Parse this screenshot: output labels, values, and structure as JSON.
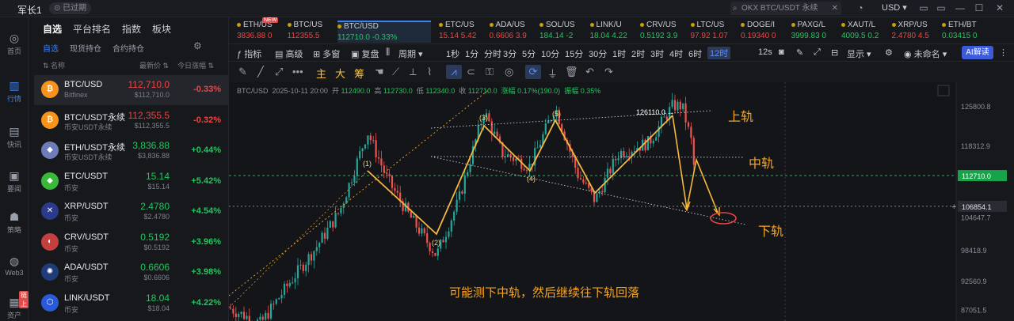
{
  "window": {
    "user": "军长1",
    "status_badge": "已过期",
    "search_placeholder": "OKX BTC/USDT 永续",
    "currency": "USD"
  },
  "sidebar": [
    {
      "label": "首页",
      "icon": "home-icon",
      "glyph": "◎"
    },
    {
      "label": "行情",
      "icon": "market-icon",
      "glyph": "▥",
      "active": true
    },
    {
      "label": "快讯",
      "icon": "news-icon",
      "glyph": "▤"
    },
    {
      "label": "要闻",
      "icon": "headline-icon",
      "glyph": "▣"
    },
    {
      "label": "策略",
      "icon": "robot-icon",
      "glyph": "☗"
    },
    {
      "label": "Web3",
      "icon": "web3-icon",
      "glyph": "◍"
    },
    {
      "label": "资产",
      "icon": "wallet-icon",
      "glyph": "▦",
      "badge": "链上"
    }
  ],
  "panel": {
    "tabs": [
      "自选",
      "平台排名",
      "指数",
      "板块"
    ],
    "new_badge": "NEW",
    "subtabs": [
      "自选",
      "现货持仓",
      "合约持仓"
    ],
    "columns": {
      "name": "名称",
      "price": "最新价",
      "change": "今日涨幅"
    },
    "rows": [
      {
        "name": "BTC/USD",
        "sub": "Bitfinex",
        "price": "112,710.0",
        "usd": "$112,710.0",
        "change": "-0.33%",
        "dir": "dn",
        "color": "#f7931a",
        "glyph": "₿",
        "selected": true
      },
      {
        "name": "BTC/USDT永续",
        "sub": "币安USDT永续",
        "price": "112,355.5",
        "usd": "$112,355.5",
        "change": "-0.32%",
        "dir": "dn",
        "color": "#f7931a",
        "glyph": "₿"
      },
      {
        "name": "ETH/USDT永续",
        "sub": "币安USDT永续",
        "price": "3,836.88",
        "usd": "$3,836.88",
        "change": "+0.44%",
        "dir": "up",
        "color": "#6f7cba",
        "glyph": "◆"
      },
      {
        "name": "ETC/USDT",
        "sub": "币安",
        "price": "15.14",
        "usd": "$15.14",
        "change": "+5.42%",
        "dir": "up",
        "color": "#3ab83a",
        "glyph": "◆"
      },
      {
        "name": "XRP/USDT",
        "sub": "币安",
        "price": "2.4780",
        "usd": "$2.4780",
        "change": "+4.54%",
        "dir": "up",
        "color": "#2c3a8c",
        "glyph": "✕"
      },
      {
        "name": "CRV/USDT",
        "sub": "币安",
        "price": "0.5192",
        "usd": "$0.5192",
        "change": "+3.96%",
        "dir": "up",
        "color": "#c63f3f",
        "glyph": "◐"
      },
      {
        "name": "ADA/USDT",
        "sub": "币安",
        "price": "0.6606",
        "usd": "$0.6606",
        "change": "+3.98%",
        "dir": "up",
        "color": "#1f3b7a",
        "glyph": "✺"
      },
      {
        "name": "LINK/USDT",
        "sub": "币安",
        "price": "18.04",
        "usd": "$18.04",
        "change": "+4.22%",
        "dir": "up",
        "color": "#2a5ada",
        "glyph": "⬡"
      }
    ]
  },
  "tickers": [
    {
      "name": "ETH/US",
      "value": "3836.88 0",
      "dir": "dn"
    },
    {
      "name": "BTC/US",
      "value": "112355.5",
      "dir": "dn"
    },
    {
      "name": "BTC/USD",
      "value": "112710.0 -0.33%",
      "dir": "up",
      "active": true
    },
    {
      "name": "ETC/US",
      "value": "15.14 5.42",
      "dir": "dn"
    },
    {
      "name": "ADA/US",
      "value": "0.6606 3.9",
      "dir": "dn"
    },
    {
      "name": "SOL/US",
      "value": "184.14 -2",
      "dir": "up"
    },
    {
      "name": "LINK/U",
      "value": "18.04 4.22",
      "dir": "up"
    },
    {
      "name": "CRV/US",
      "value": "0.5192 3.9",
      "dir": "up"
    },
    {
      "name": "LTC/US",
      "value": "97.92 1.07",
      "dir": "dn"
    },
    {
      "name": "DOGE/I",
      "value": "0.19340 0",
      "dir": "dn"
    },
    {
      "name": "PAXG/L",
      "value": "3999.83 0",
      "dir": "up"
    },
    {
      "name": "XAUT/L",
      "value": "4009.5 0.2",
      "dir": "up"
    },
    {
      "name": "XRP/US",
      "value": "2.4780 4.5",
      "dir": "dn"
    },
    {
      "name": "ETH/BT",
      "value": "0.03415 0",
      "dir": "up"
    }
  ],
  "toolbar": {
    "indicator": "指标",
    "advanced": "高级",
    "multi": "多窗",
    "replay": "复盘",
    "period": "周期",
    "intervals": [
      "1秒",
      "1分",
      "分时",
      "3分",
      "5分",
      "10分",
      "15分",
      "30分",
      "1时",
      "2时",
      "3时",
      "4时",
      "6时",
      "12时"
    ],
    "selected_interval": "12时",
    "right_interval": "12s",
    "display": "显示",
    "unnamed": "未命名",
    "ai_label": "AI解读"
  },
  "drawing_tools": [
    "主",
    "大",
    "筹"
  ],
  "chart_data": {
    "type": "candlestick",
    "symbol": "BTC/USD",
    "info": {
      "datetime": "2025-10-11 20:00",
      "open": "112490.0",
      "high": "112730.0",
      "low": "112340.0",
      "close": "112710.0",
      "change": "涨幅 0.17%(190.0)",
      "amplitude": "振幅 0.35%"
    },
    "info_labels": {
      "open": "开",
      "high": "高",
      "low": "低",
      "close": "收"
    },
    "y_ticks": [
      125800.8,
      118312.9,
      106854.1,
      104647.7,
      98418.9,
      92560.9,
      87051.5
    ],
    "y_range": [
      85000,
      130500
    ],
    "current_price": 112710.0,
    "crosshair_price": 106854.1,
    "high_annotation": "126110.0",
    "wave_labels": [
      "(1)",
      "(2)",
      "(3)",
      "(4)",
      "(5)"
    ],
    "channel_labels": {
      "upper": "上轨",
      "middle": "中轨",
      "lower": "下轨"
    },
    "annotation": "可能测下中轨，然后继续往下轨回落",
    "colors": {
      "up": "#26a69a",
      "down": "#ef5350",
      "wave": "#f5b73d",
      "annotation": "#f5a524"
    }
  }
}
